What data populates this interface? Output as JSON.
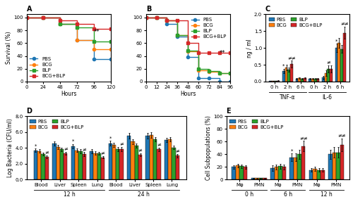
{
  "chart_data": [
    {
      "type": "line",
      "title": "A",
      "xlabel": "Hours",
      "ylabel": "Survival (%)",
      "xlim": [
        0,
        120
      ],
      "ylim": [
        0,
        105
      ],
      "xticks": [
        0,
        24,
        48,
        72,
        96,
        120
      ],
      "yticks": [
        0,
        20,
        40,
        60,
        80,
        100
      ],
      "line_style": "steps",
      "legend": "lower left",
      "x": [
        0,
        24,
        48,
        72,
        96,
        120
      ],
      "series": [
        {
          "name": "PBS",
          "marker": "circle",
          "values": [
            100,
            100,
            90,
            65,
            35,
            35
          ]
        },
        {
          "name": "BCG",
          "marker": "circle",
          "values": [
            100,
            100,
            90,
            65,
            50,
            50
          ]
        },
        {
          "name": "BLP",
          "marker": "square",
          "values": [
            100,
            100,
            90,
            85,
            62,
            62
          ]
        },
        {
          "name": "BCG+BLP",
          "marker": "square",
          "values": [
            100,
            100,
            95,
            90,
            82,
            82
          ]
        }
      ],
      "annotations": [
        {
          "text": "**",
          "x": 100,
          "y": 72
        }
      ]
    },
    {
      "type": "line",
      "title": "B",
      "xlabel": "Hours",
      "xlim": [
        0,
        96
      ],
      "ylim": [
        0,
        105
      ],
      "xticks": [
        0,
        12,
        24,
        36,
        48,
        60,
        72,
        84,
        96
      ],
      "yticks": [
        0,
        20,
        40,
        60,
        80,
        100
      ],
      "line_style": "steps",
      "legend": "upper right",
      "x": [
        0,
        12,
        24,
        36,
        48,
        60,
        72,
        84,
        96
      ],
      "series": [
        {
          "name": "PBS",
          "marker": "circle",
          "values": [
            100,
            100,
            90,
            70,
            38,
            5,
            5,
            0,
            0
          ]
        },
        {
          "name": "BCG",
          "marker": "circle",
          "values": [
            100,
            100,
            95,
            72,
            47,
            18,
            15,
            13,
            13
          ]
        },
        {
          "name": "BLP",
          "marker": "square",
          "values": [
            100,
            100,
            95,
            72,
            48,
            20,
            17,
            13,
            13
          ]
        },
        {
          "name": "BCG+BLP",
          "marker": "square",
          "values": [
            100,
            100,
            95,
            95,
            60,
            45,
            45,
            45,
            45
          ]
        }
      ],
      "annotations": [
        {
          "text": "**",
          "x": 87,
          "y": 40
        }
      ]
    },
    {
      "type": "bar",
      "title": "C",
      "ylabel": "ng / ml",
      "categories": [
        "0 h",
        "2 h",
        "6 h",
        "0 h",
        "2 h",
        "6 h"
      ],
      "groups": [
        {
          "label": "TNF-α",
          "count": 3
        },
        {
          "label": "IL-6",
          "count": 3
        }
      ],
      "ylim": [
        0,
        2.0
      ],
      "yticks": [
        {
          "value": 0,
          "label": "0.0"
        },
        {
          "value": 0.5,
          "label": "0.5"
        },
        {
          "value": 1.0,
          "label": "1.0"
        },
        {
          "value": 1.5,
          "label": "1.5"
        },
        {
          "value": 2.0,
          "label": "2.0"
        }
      ],
      "legend": "upper left",
      "series": [
        {
          "name": "PBS",
          "values": [
            0.02,
            0.32,
            0.08,
            0.08,
            0.12,
            1.0
          ],
          "errors": [
            0.01,
            0.06,
            0.02,
            0.02,
            0.05,
            0.12
          ]
        },
        {
          "name": "BCG",
          "values": [
            0.02,
            0.42,
            0.1,
            0.08,
            0.25,
            1.15
          ],
          "errors": [
            0.01,
            0.08,
            0.02,
            0.02,
            0.08,
            0.15
          ]
        },
        {
          "name": "BLP",
          "values": [
            0.02,
            0.35,
            0.08,
            0.08,
            0.38,
            0.97
          ],
          "errors": [
            0.01,
            0.06,
            0.02,
            0.02,
            0.1,
            0.12
          ]
        },
        {
          "name": "BCG+BLP",
          "values": [
            0.03,
            0.52,
            0.1,
            0.08,
            0.38,
            1.45
          ],
          "errors": [
            0.01,
            0.1,
            0.02,
            0.02,
            0.1,
            0.18
          ]
        }
      ],
      "annotations": [
        {
          "text": "*",
          "category": 1,
          "series": "PBS"
        },
        {
          "text": "≠≠",
          "category": 1,
          "series": "BCG+BLP"
        },
        {
          "text": "≠",
          "category": 4,
          "series": "BLP"
        },
        {
          "text": "*",
          "category": 5,
          "series": "PBS"
        },
        {
          "text": "≠≠",
          "category": 5,
          "series": "BCG+BLP"
        }
      ]
    },
    {
      "type": "bar",
      "title": "D",
      "ylabel": "Log Bacteria (CFU/ml)",
      "categories": [
        "Blood",
        "Liver",
        "Spleen",
        "Lung",
        "Blood",
        "Liver",
        "Spleen",
        "Lung"
      ],
      "groups": [
        {
          "label": "12 h",
          "count": 4
        },
        {
          "label": "24 h",
          "count": 4
        }
      ],
      "ylim": [
        0,
        8.0
      ],
      "yticks": [
        {
          "value": 0,
          "label": "0.0"
        },
        {
          "value": 2.0,
          "label": "2.0"
        },
        {
          "value": 4.0,
          "label": "4.0"
        },
        {
          "value": 6.0,
          "label": "6.0"
        },
        {
          "value": 8.0,
          "label": "8.0"
        }
      ],
      "legend": "upper left",
      "series": [
        {
          "name": "PBS",
          "values": [
            3.7,
            4.55,
            4.2,
            3.6,
            4.6,
            5.55,
            5.55,
            5.0
          ],
          "errors": [
            0.2,
            0.3,
            0.3,
            0.25,
            0.3,
            0.35,
            0.35,
            0.3
          ]
        },
        {
          "name": "BCG",
          "values": [
            3.6,
            4.1,
            3.7,
            3.35,
            4.4,
            4.8,
            5.6,
            5.1
          ],
          "errors": [
            0.2,
            0.25,
            0.25,
            0.2,
            0.25,
            0.3,
            0.35,
            0.3
          ]
        },
        {
          "name": "BLP",
          "values": [
            3.2,
            3.8,
            3.55,
            3.3,
            3.85,
            4.3,
            5.1,
            4.05
          ],
          "errors": [
            0.2,
            0.25,
            0.25,
            0.2,
            0.25,
            0.25,
            0.3,
            0.25
          ]
        },
        {
          "name": "BCG+BLP",
          "values": [
            2.85,
            3.3,
            3.2,
            2.8,
            3.85,
            3.15,
            3.8,
            3.0
          ],
          "errors": [
            0.2,
            0.2,
            0.25,
            0.15,
            0.25,
            0.2,
            0.25,
            0.2
          ]
        }
      ],
      "annotations": [
        {
          "text": "*",
          "category": 0,
          "series": "PBS"
        },
        {
          "text": "≠",
          "category": 0,
          "series": "BCG+BLP"
        },
        {
          "text": "≠",
          "category": 1,
          "series": "BCG+BLP"
        },
        {
          "text": "*",
          "category": 2,
          "series": "PBS"
        },
        {
          "text": "≠",
          "category": 2,
          "series": "BCG+BLP"
        },
        {
          "text": "≠",
          "category": 3,
          "series": "BCG+BLP"
        },
        {
          "text": "*",
          "category": 4,
          "series": "PBS"
        },
        {
          "text": "≠",
          "category": 4,
          "series": "BCG+BLP"
        },
        {
          "text": "≠",
          "category": 5,
          "series": "BCG+BLP"
        },
        {
          "text": "≠",
          "category": 6,
          "series": "BCG+BLP"
        },
        {
          "text": "≠",
          "category": 7,
          "series": "BCG+BLP"
        }
      ]
    },
    {
      "type": "bar",
      "title": "E",
      "ylabel": "Cell Subpopulations (%)",
      "categories": [
        "Mφ",
        "PMN",
        "Mφ",
        "PMN",
        "Mφ",
        "PMN"
      ],
      "groups": [
        {
          "label": "0 h",
          "count": 2
        },
        {
          "label": "6 h",
          "count": 2
        },
        {
          "label": "12 h",
          "count": 2
        }
      ],
      "ylim": [
        0,
        100
      ],
      "yticks": [
        0,
        20,
        40,
        60,
        80,
        100
      ],
      "legend": "upper left",
      "series": [
        {
          "name": "PBS",
          "values": [
            20,
            2,
            18,
            35,
            15,
            40
          ],
          "errors": [
            3,
            0.5,
            4,
            6,
            3,
            7
          ]
        },
        {
          "name": "BCG",
          "values": [
            22,
            2,
            20,
            35,
            17,
            43
          ],
          "errors": [
            3,
            0.5,
            4,
            6,
            3,
            8
          ]
        },
        {
          "name": "BLP",
          "values": [
            21,
            2,
            21,
            40,
            15,
            43
          ],
          "errors": [
            3,
            0.5,
            4,
            7,
            3,
            8
          ]
        },
        {
          "name": "BCG+BLP",
          "values": [
            20,
            2,
            20,
            53,
            15,
            55
          ],
          "errors": [
            3,
            0.5,
            4,
            8,
            3,
            10
          ]
        }
      ],
      "annotations": [
        {
          "text": "*",
          "category": 3,
          "series": "PBS"
        },
        {
          "text": "≠≠",
          "category": 3,
          "series": "BCG+BLP"
        },
        {
          "text": "≠≠",
          "category": 5,
          "series": "BCG+BLP"
        }
      ]
    }
  ]
}
